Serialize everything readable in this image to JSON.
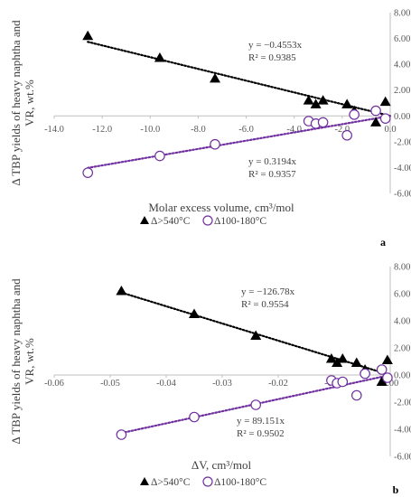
{
  "chart_data": [
    {
      "type": "scatter",
      "panel_label": "a",
      "xlabel": "Molar excess volume, cm³/mol",
      "ylabel": "Δ TBP yields of heavy naphtha and VR, wt.%",
      "xlim": [
        -14,
        0
      ],
      "ylim": [
        -6,
        8
      ],
      "x_ticks": [
        "-14.0",
        "-12.0",
        "-10.0",
        "-8.0",
        "-6.0",
        "-4.0",
        "-2.0",
        "0.0"
      ],
      "y_ticks": [
        "8.00",
        "6.00",
        "4.00",
        "2.00",
        "0.00",
        "-2.00",
        "-4.00",
        "-6.00"
      ],
      "grid": false,
      "legend_position": "bottom",
      "series": [
        {
          "name": "Δ>540°C",
          "marker": "filled-triangle",
          "color": "#000000",
          "points": [
            [
              -12.6,
              6.2
            ],
            [
              -9.6,
              4.5
            ],
            [
              -7.3,
              2.9
            ],
            [
              -3.4,
              1.2
            ],
            [
              -3.1,
              0.9
            ],
            [
              -2.8,
              1.2
            ],
            [
              -1.8,
              0.9
            ],
            [
              -1.5,
              0.4
            ],
            [
              -0.6,
              -0.5
            ],
            [
              -0.2,
              1.1
            ]
          ],
          "trendline": {
            "slope": -0.4553,
            "color": "#000000",
            "equation": "y = −0.4553x",
            "r2": "R² = 0.9385"
          }
        },
        {
          "name": "Δ100-180°C",
          "marker": "open-circle",
          "color": "#7030a0",
          "points": [
            [
              -12.6,
              -4.4
            ],
            [
              -9.6,
              -3.1
            ],
            [
              -7.3,
              -2.2
            ],
            [
              -3.4,
              -0.4
            ],
            [
              -3.1,
              -0.6
            ],
            [
              -2.8,
              -0.5
            ],
            [
              -1.8,
              -1.5
            ],
            [
              -1.5,
              0.1
            ],
            [
              -0.6,
              0.4
            ],
            [
              -0.2,
              -0.2
            ]
          ],
          "trendline": {
            "slope": 0.3194,
            "color": "#7030a0",
            "equation": "y = 0.3194x",
            "r2": "R² = 0.9357"
          }
        }
      ]
    },
    {
      "type": "scatter",
      "panel_label": "b",
      "xlabel": "ΔV, cm³/mol",
      "ylabel": "Δ TBP yields of heavy naphtha and VR, wt.%",
      "xlim": [
        -0.06,
        0
      ],
      "ylim": [
        -6,
        8
      ],
      "x_ticks": [
        "-0.06",
        "-0.05",
        "-0.04",
        "-0.03",
        "-0.02",
        "-0.01",
        "0.00"
      ],
      "y_ticks": [
        "8.00",
        "6.00",
        "4.00",
        "2.00",
        "0.00",
        "-2.00",
        "-4.00",
        "-6.00"
      ],
      "grid": false,
      "legend_position": "bottom",
      "series": [
        {
          "name": "Δ>540°C",
          "marker": "filled-triangle",
          "color": "#000000",
          "points": [
            [
              -0.048,
              6.2
            ],
            [
              -0.035,
              4.5
            ],
            [
              -0.024,
              2.9
            ],
            [
              -0.0105,
              1.2
            ],
            [
              -0.0095,
              0.9
            ],
            [
              -0.0085,
              1.2
            ],
            [
              -0.006,
              0.9
            ],
            [
              -0.0045,
              0.4
            ],
            [
              -0.0015,
              -0.5
            ],
            [
              -0.0005,
              1.1
            ]
          ],
          "trendline": {
            "slope": -126.78,
            "color": "#000000",
            "equation": "y = −126.78x",
            "r2": "R² = 0.9554"
          }
        },
        {
          "name": "Δ100-180°C",
          "marker": "open-circle",
          "color": "#7030a0",
          "points": [
            [
              -0.048,
              -4.4
            ],
            [
              -0.035,
              -3.1
            ],
            [
              -0.024,
              -2.2
            ],
            [
              -0.0105,
              -0.4
            ],
            [
              -0.0095,
              -0.6
            ],
            [
              -0.0085,
              -0.5
            ],
            [
              -0.006,
              -1.5
            ],
            [
              -0.0045,
              0.1
            ],
            [
              -0.0015,
              0.4
            ],
            [
              -0.0005,
              -0.2
            ]
          ],
          "trendline": {
            "slope": 89.151,
            "color": "#7030a0",
            "equation": "y = 89.151x",
            "r2": "R² = 0.9502"
          }
        }
      ]
    }
  ]
}
